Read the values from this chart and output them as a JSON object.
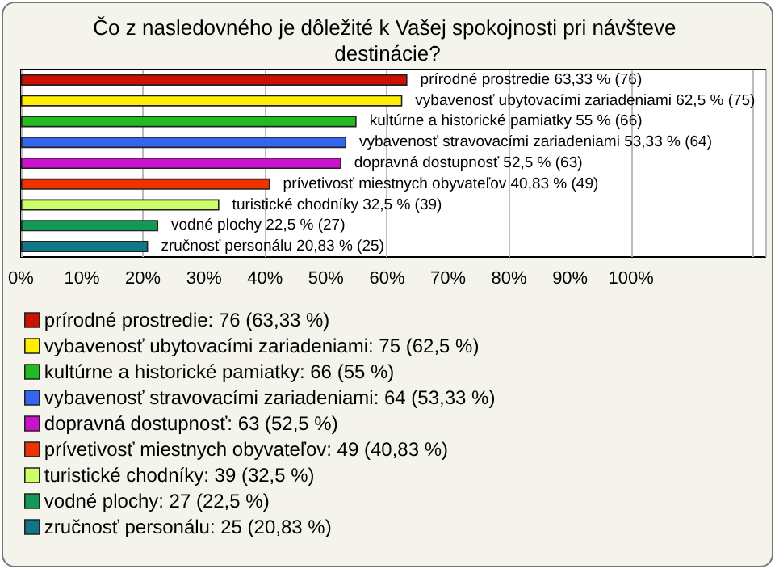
{
  "chart_data": {
    "type": "bar",
    "orientation": "horizontal",
    "stacked": true,
    "title": "Čo z nasledovného je dôležité k Vašej spokojnosti pri návšteve destinácie?",
    "categories": [
      null,
      null,
      null,
      null,
      null,
      null,
      null,
      null,
      null
    ],
    "series": [
      {
        "name": "prírodné prostredie: 76 (63,33 %)",
        "color": "#cc1100",
        "values": [
          63.33,
          null,
          null,
          null,
          null,
          null,
          null,
          null,
          null
        ],
        "value_labels": [
          "prírodné prostredie 63,33 % (76)",
          null,
          null,
          null,
          null,
          null,
          null,
          null,
          null
        ]
      },
      {
        "name": "vybavenosť ubytovacími zariadeniami: 75 (62,5 %)",
        "color": "#ffee00",
        "values": [
          null,
          62.5,
          null,
          null,
          null,
          null,
          null,
          null,
          null
        ],
        "value_labels": [
          null,
          "vybavenosť ubytovacími zariadeniami 62,5 % (75)",
          null,
          null,
          null,
          null,
          null,
          null,
          null
        ]
      },
      {
        "name": "kultúrne a historické pamiatky: 66 (55 %)",
        "color": "#22bb22",
        "values": [
          null,
          null,
          55,
          null,
          null,
          null,
          null,
          null,
          null
        ],
        "value_labels": [
          null,
          null,
          "kultúrne a historické pamiatky 55 % (66)",
          null,
          null,
          null,
          null,
          null,
          null
        ]
      },
      {
        "name": "vybavenosť stravovacími zariadeniami: 64 (53,33 %)",
        "color": "#3366ee",
        "values": [
          null,
          null,
          null,
          53.33,
          null,
          null,
          null,
          null,
          null
        ],
        "value_labels": [
          null,
          null,
          null,
          "vybavenosť stravovacími zariadeniami 53,33 % (64)",
          null,
          null,
          null,
          null,
          null
        ]
      },
      {
        "name": "dopravná dostupnosť: 63 (52,5 %)",
        "color": "#cc11cc",
        "values": [
          null,
          null,
          null,
          null,
          52.5,
          null,
          null,
          null,
          null
        ],
        "value_labels": [
          null,
          null,
          null,
          null,
          "dopravná dostupnosť 52,5 % (63)",
          null,
          null,
          null,
          null
        ]
      },
      {
        "name": "prívetivosť miestnych obyvateľov: 49 (40,83 %)",
        "color": "#ee3300",
        "values": [
          null,
          null,
          null,
          null,
          null,
          40.83,
          null,
          null,
          null
        ],
        "value_labels": [
          null,
          null,
          null,
          null,
          null,
          "prívetivosť miestnych obyvateľov 40,83 % (49)",
          null,
          null,
          null
        ]
      },
      {
        "name": "turistické chodníky: 39 (32,5 %)",
        "color": "#ccff66",
        "values": [
          null,
          null,
          null,
          null,
          null,
          null,
          32.5,
          null,
          null
        ],
        "value_labels": [
          null,
          null,
          null,
          null,
          null,
          null,
          "turistické chodníky 32,5 % (39)",
          null,
          null
        ]
      },
      {
        "name": "vodné plochy: 27 (22,5 %)",
        "color": "#119955",
        "values": [
          null,
          null,
          null,
          null,
          null,
          null,
          null,
          22.5,
          null
        ],
        "value_labels": [
          null,
          null,
          null,
          null,
          null,
          null,
          null,
          "vodné plochy 22,5 % (27)",
          null
        ]
      },
      {
        "name": "zručnosť personálu: 25 (20,83 %)",
        "color": "#117788",
        "values": [
          null,
          null,
          null,
          null,
          null,
          null,
          null,
          null,
          20.83
        ],
        "value_labels": [
          null,
          null,
          null,
          null,
          null,
          null,
          null,
          null,
          "zručnosť personálu 20,83 % (25)"
        ]
      }
    ],
    "xlim": [
      0,
      122
    ],
    "xticks": [
      {
        "value": 0,
        "label": "0%"
      },
      {
        "value": 10,
        "label": "10%"
      },
      {
        "value": 20,
        "label": "20%"
      },
      {
        "value": 30,
        "label": "30%"
      },
      {
        "value": 40,
        "label": "40%"
      },
      {
        "value": 50,
        "label": "50%"
      },
      {
        "value": 60,
        "label": "60%"
      },
      {
        "value": 70,
        "label": "70%"
      },
      {
        "value": 80,
        "label": "80%"
      },
      {
        "value": 90,
        "label": "90%"
      },
      {
        "value": 100,
        "label": "100%"
      }
    ],
    "grid": "x",
    "legend": "bottom",
    "tick_labels": "x"
  }
}
